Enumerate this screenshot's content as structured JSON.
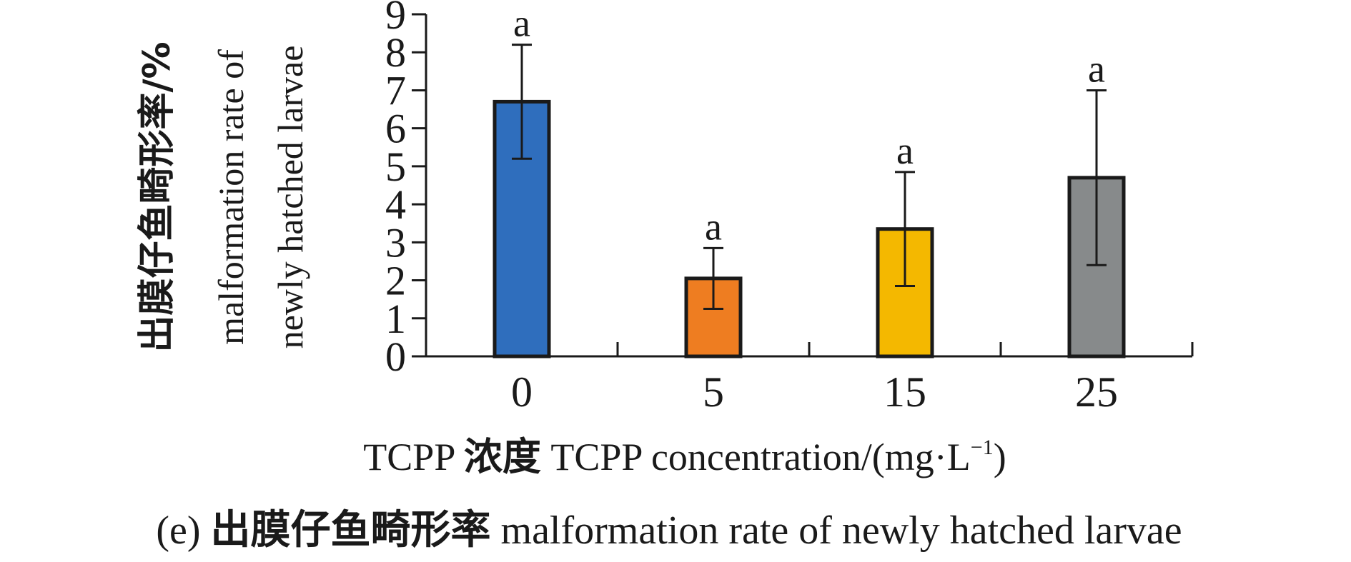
{
  "chart_data": {
    "type": "bar",
    "categories": [
      "0",
      "5",
      "15",
      "25"
    ],
    "values": [
      6.7,
      2.05,
      3.35,
      4.7
    ],
    "errors": [
      1.5,
      0.8,
      1.5,
      2.3
    ],
    "significance_letters": [
      "a",
      "a",
      "a",
      "a"
    ],
    "bar_colors": [
      "#2f6ebd",
      "#ee7d21",
      "#f4b800",
      "#878a8b"
    ],
    "ylim": [
      0,
      9
    ],
    "yticks": [
      "0",
      "1",
      "2",
      "3",
      "4",
      "5",
      "6",
      "7",
      "8",
      "9"
    ],
    "ylabel": {
      "cn": "出膜仔鱼畸形率/%",
      "en_line1": "malformation rate of",
      "en_line2": "newly hatched larvae"
    },
    "xlabel": {
      "prefix": "TCPP",
      "cn": "浓度",
      "en": "TCPP concentration/(mg",
      "dot": "·",
      "unit": "L",
      "sup": "−1",
      "close": ")"
    },
    "caption": {
      "tag": "(e)",
      "cn": "出膜仔鱼畸形率",
      "en": "malformation rate of newly hatched larvae"
    },
    "grid": false,
    "legend": "none"
  }
}
